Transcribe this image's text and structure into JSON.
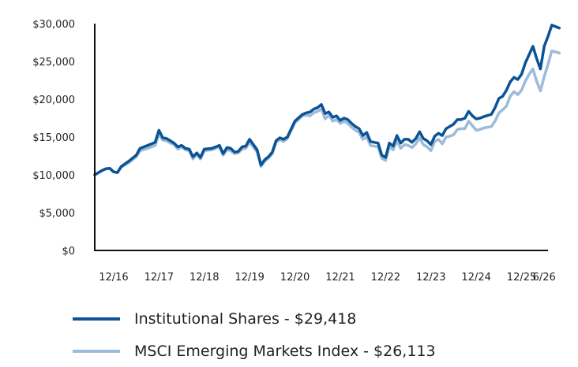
{
  "chart_data": {
    "type": "line",
    "y_ticks": [
      {
        "value": 0,
        "label": "$0"
      },
      {
        "value": 5000,
        "label": "$5,000"
      },
      {
        "value": 10000,
        "label": "$10,000"
      },
      {
        "value": 15000,
        "label": "$15,000"
      },
      {
        "value": 20000,
        "label": "$20,000"
      },
      {
        "value": 25000,
        "label": "$25,000"
      },
      {
        "value": 30000,
        "label": "$30,000"
      }
    ],
    "ylim": [
      0,
      30000
    ],
    "xlim": [
      2016.5,
      2026.5
    ],
    "x_ticks": [
      {
        "value": 2016.917,
        "label": "12/16"
      },
      {
        "value": 2017.917,
        "label": "12/17"
      },
      {
        "value": 2018.917,
        "label": "12/18"
      },
      {
        "value": 2019.917,
        "label": "12/19"
      },
      {
        "value": 2020.917,
        "label": "12/20"
      },
      {
        "value": 2021.917,
        "label": "12/21"
      },
      {
        "value": 2022.917,
        "label": "12/22"
      },
      {
        "value": 2023.917,
        "label": "12/23"
      },
      {
        "value": 2024.917,
        "label": "12/24"
      },
      {
        "value": 2025.917,
        "label": "12/25"
      },
      {
        "value": 2026.417,
        "label": "6/26"
      }
    ],
    "series": [
      {
        "name": "Institutional Shares - $29,418",
        "color": "#0b5394",
        "points": [
          [
            2016.5,
            10000
          ],
          [
            2016.583,
            10300
          ],
          [
            2016.667,
            10600
          ],
          [
            2016.75,
            10800
          ],
          [
            2016.833,
            10850
          ],
          [
            2016.917,
            10400
          ],
          [
            2017.0,
            10300
          ],
          [
            2017.083,
            11100
          ],
          [
            2017.25,
            11800
          ],
          [
            2017.417,
            12600
          ],
          [
            2017.5,
            13500
          ],
          [
            2017.667,
            13900
          ],
          [
            2017.833,
            14300
          ],
          [
            2017.917,
            15900
          ],
          [
            2018.0,
            14900
          ],
          [
            2018.083,
            14800
          ],
          [
            2018.167,
            14500
          ],
          [
            2018.25,
            14200
          ],
          [
            2018.333,
            13700
          ],
          [
            2018.417,
            13900
          ],
          [
            2018.5,
            13500
          ],
          [
            2018.583,
            13400
          ],
          [
            2018.667,
            12400
          ],
          [
            2018.75,
            12900
          ],
          [
            2018.833,
            12300
          ],
          [
            2018.917,
            13400
          ],
          [
            2019.083,
            13500
          ],
          [
            2019.25,
            13900
          ],
          [
            2019.333,
            12800
          ],
          [
            2019.417,
            13600
          ],
          [
            2019.5,
            13500
          ],
          [
            2019.583,
            13000
          ],
          [
            2019.667,
            13100
          ],
          [
            2019.75,
            13700
          ],
          [
            2019.833,
            13800
          ],
          [
            2019.917,
            14700
          ],
          [
            2020.083,
            13300
          ],
          [
            2020.167,
            11300
          ],
          [
            2020.25,
            12000
          ],
          [
            2020.333,
            12400
          ],
          [
            2020.417,
            13000
          ],
          [
            2020.5,
            14500
          ],
          [
            2020.583,
            14900
          ],
          [
            2020.667,
            14700
          ],
          [
            2020.75,
            15000
          ],
          [
            2020.917,
            17100
          ],
          [
            2021.083,
            18000
          ],
          [
            2021.167,
            18200
          ],
          [
            2021.25,
            18300
          ],
          [
            2021.333,
            18700
          ],
          [
            2021.417,
            18900
          ],
          [
            2021.5,
            19300
          ],
          [
            2021.583,
            18100
          ],
          [
            2021.667,
            18300
          ],
          [
            2021.75,
            17600
          ],
          [
            2021.833,
            17800
          ],
          [
            2021.917,
            17200
          ],
          [
            2022.0,
            17500
          ],
          [
            2022.083,
            17300
          ],
          [
            2022.167,
            16800
          ],
          [
            2022.25,
            16400
          ],
          [
            2022.333,
            16100
          ],
          [
            2022.417,
            15200
          ],
          [
            2022.5,
            15600
          ],
          [
            2022.583,
            14400
          ],
          [
            2022.75,
            14200
          ],
          [
            2022.833,
            12600
          ],
          [
            2022.917,
            12300
          ],
          [
            2023.0,
            14200
          ],
          [
            2023.083,
            13800
          ],
          [
            2023.167,
            15200
          ],
          [
            2023.25,
            14200
          ],
          [
            2023.333,
            14700
          ],
          [
            2023.417,
            14700
          ],
          [
            2023.5,
            14300
          ],
          [
            2023.583,
            14800
          ],
          [
            2023.667,
            15700
          ],
          [
            2023.75,
            14800
          ],
          [
            2023.833,
            14500
          ],
          [
            2023.917,
            14000
          ],
          [
            2024.0,
            15100
          ],
          [
            2024.083,
            15500
          ],
          [
            2024.167,
            15200
          ],
          [
            2024.25,
            16100
          ],
          [
            2024.333,
            16400
          ],
          [
            2024.417,
            16700
          ],
          [
            2024.5,
            17300
          ],
          [
            2024.583,
            17300
          ],
          [
            2024.667,
            17500
          ],
          [
            2024.75,
            18400
          ],
          [
            2024.833,
            17800
          ],
          [
            2024.917,
            17400
          ],
          [
            2025.0,
            17500
          ],
          [
            2025.083,
            17700
          ],
          [
            2025.25,
            18000
          ],
          [
            2025.333,
            18900
          ],
          [
            2025.417,
            20100
          ],
          [
            2025.5,
            20400
          ],
          [
            2025.583,
            21200
          ],
          [
            2025.667,
            22300
          ],
          [
            2025.75,
            22900
          ],
          [
            2025.833,
            22600
          ],
          [
            2025.917,
            23300
          ],
          [
            2026.0,
            24800
          ],
          [
            2026.083,
            25900
          ],
          [
            2026.167,
            27000
          ],
          [
            2026.25,
            25400
          ],
          [
            2026.333,
            24000
          ],
          [
            2026.417,
            27000
          ],
          [
            2026.5,
            28300
          ],
          [
            2026.583,
            29800
          ],
          [
            2026.75,
            29418
          ]
        ]
      },
      {
        "name": "MSCI Emerging Markets Index - $26,113",
        "color": "#9dbbd8",
        "points": [
          [
            2016.5,
            10000
          ],
          [
            2016.583,
            10300
          ],
          [
            2016.667,
            10600
          ],
          [
            2016.75,
            10800
          ],
          [
            2016.833,
            10850
          ],
          [
            2016.917,
            10400
          ],
          [
            2017.0,
            10300
          ],
          [
            2017.083,
            11000
          ],
          [
            2017.25,
            11600
          ],
          [
            2017.417,
            12400
          ],
          [
            2017.5,
            13200
          ],
          [
            2017.667,
            13500
          ],
          [
            2017.833,
            13900
          ],
          [
            2017.917,
            15400
          ],
          [
            2018.0,
            14600
          ],
          [
            2018.083,
            14500
          ],
          [
            2018.167,
            14200
          ],
          [
            2018.25,
            14000
          ],
          [
            2018.333,
            13400
          ],
          [
            2018.417,
            13700
          ],
          [
            2018.5,
            13300
          ],
          [
            2018.583,
            13200
          ],
          [
            2018.667,
            12100
          ],
          [
            2018.75,
            12700
          ],
          [
            2018.833,
            12100
          ],
          [
            2018.917,
            13200
          ],
          [
            2019.083,
            13300
          ],
          [
            2019.25,
            13700
          ],
          [
            2019.333,
            12600
          ],
          [
            2019.417,
            13300
          ],
          [
            2019.5,
            13200
          ],
          [
            2019.583,
            12800
          ],
          [
            2019.667,
            12900
          ],
          [
            2019.75,
            13400
          ],
          [
            2019.833,
            13500
          ],
          [
            2019.917,
            14300
          ],
          [
            2020.083,
            13000
          ],
          [
            2020.167,
            11100
          ],
          [
            2020.25,
            11800
          ],
          [
            2020.333,
            12200
          ],
          [
            2020.417,
            12800
          ],
          [
            2020.5,
            14300
          ],
          [
            2020.583,
            14700
          ],
          [
            2020.667,
            14400
          ],
          [
            2020.75,
            14800
          ],
          [
            2020.917,
            16900
          ],
          [
            2021.083,
            17800
          ],
          [
            2021.167,
            17900
          ],
          [
            2021.25,
            17800
          ],
          [
            2021.333,
            18200
          ],
          [
            2021.417,
            18400
          ],
          [
            2021.5,
            18700
          ],
          [
            2021.583,
            17400
          ],
          [
            2021.667,
            17900
          ],
          [
            2021.75,
            17100
          ],
          [
            2021.833,
            17300
          ],
          [
            2021.917,
            16800
          ],
          [
            2022.0,
            17100
          ],
          [
            2022.083,
            16800
          ],
          [
            2022.167,
            16300
          ],
          [
            2022.25,
            15900
          ],
          [
            2022.333,
            15600
          ],
          [
            2022.417,
            14700
          ],
          [
            2022.5,
            15000
          ],
          [
            2022.583,
            13900
          ],
          [
            2022.75,
            13700
          ],
          [
            2022.833,
            12200
          ],
          [
            2022.917,
            11900
          ],
          [
            2023.0,
            13700
          ],
          [
            2023.083,
            13300
          ],
          [
            2023.167,
            14500
          ],
          [
            2023.25,
            13500
          ],
          [
            2023.333,
            14000
          ],
          [
            2023.417,
            13900
          ],
          [
            2023.5,
            13600
          ],
          [
            2023.583,
            14100
          ],
          [
            2023.667,
            14900
          ],
          [
            2023.75,
            14000
          ],
          [
            2023.833,
            13700
          ],
          [
            2023.917,
            13200
          ],
          [
            2024.0,
            14400
          ],
          [
            2024.083,
            14700
          ],
          [
            2024.167,
            14100
          ],
          [
            2024.25,
            15000
          ],
          [
            2024.333,
            15100
          ],
          [
            2024.417,
            15300
          ],
          [
            2024.5,
            16000
          ],
          [
            2024.583,
            16100
          ],
          [
            2024.667,
            16100
          ],
          [
            2024.75,
            17100
          ],
          [
            2024.833,
            16500
          ],
          [
            2024.917,
            15900
          ],
          [
            2025.0,
            16000
          ],
          [
            2025.083,
            16200
          ],
          [
            2025.25,
            16400
          ],
          [
            2025.333,
            17100
          ],
          [
            2025.417,
            18200
          ],
          [
            2025.5,
            18600
          ],
          [
            2025.583,
            19100
          ],
          [
            2025.667,
            20400
          ],
          [
            2025.75,
            21000
          ],
          [
            2025.833,
            20600
          ],
          [
            2025.917,
            21200
          ],
          [
            2026.0,
            22400
          ],
          [
            2026.083,
            23300
          ],
          [
            2026.167,
            24000
          ],
          [
            2026.25,
            22400
          ],
          [
            2026.333,
            21100
          ],
          [
            2026.417,
            23000
          ],
          [
            2026.5,
            24600
          ],
          [
            2026.583,
            26400
          ],
          [
            2026.75,
            26113
          ]
        ]
      }
    ]
  }
}
